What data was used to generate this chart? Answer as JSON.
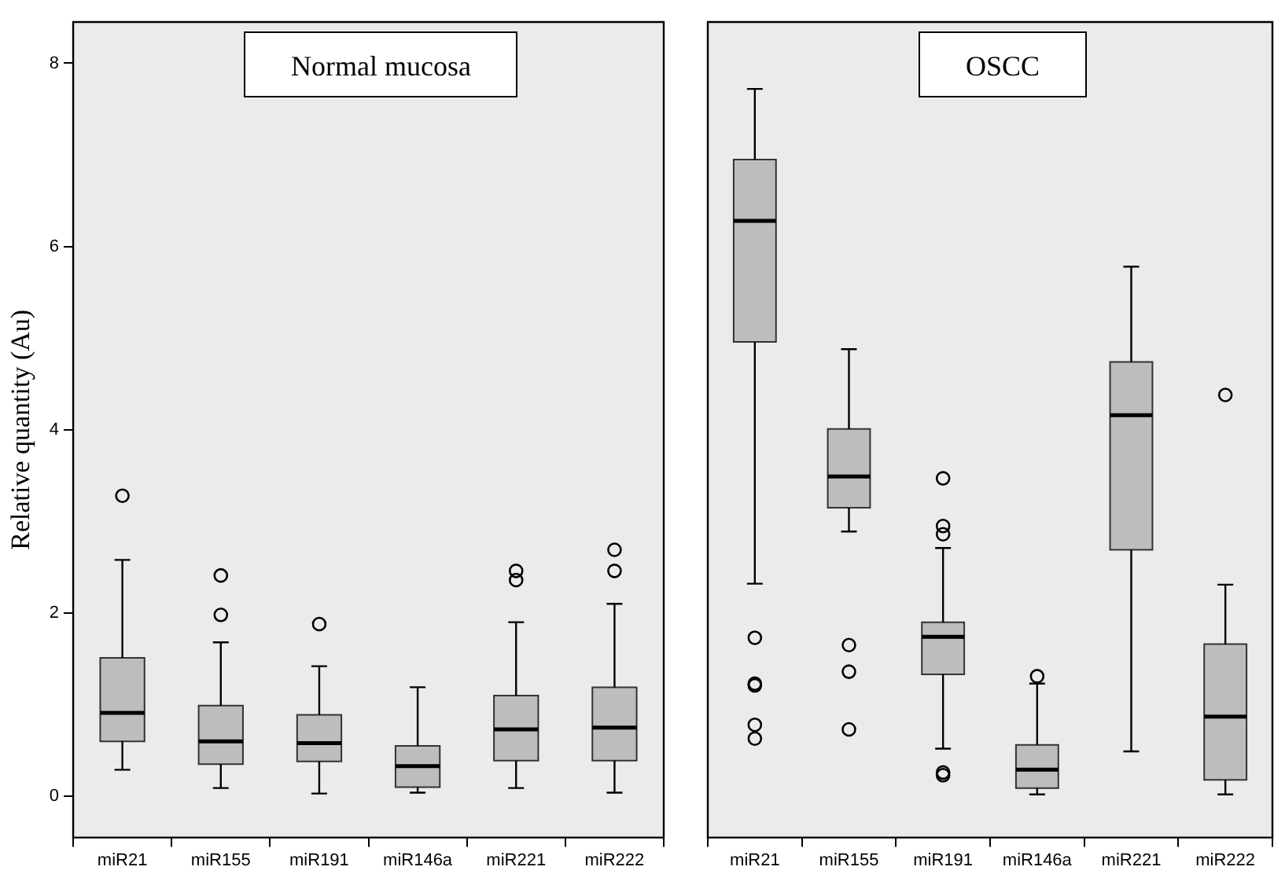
{
  "chart_data": [
    {
      "type": "box",
      "title": "Normal mucosa",
      "ylabel": "Relative quantity (Au)",
      "categories": [
        "miR21",
        "miR155",
        "miR191",
        "miR146a",
        "miR221",
        "miR222"
      ],
      "color": "#bdbdbd",
      "ylim": [
        -0.45,
        8.45
      ],
      "yticks": [
        0,
        2,
        4,
        6,
        8
      ],
      "grid": false,
      "legend": false,
      "boxes": [
        {
          "low": 0.29,
          "q1": 0.6,
          "median": 0.91,
          "q3": 1.51,
          "high": 2.58,
          "outliers": [
            3.28
          ]
        },
        {
          "low": 0.09,
          "q1": 0.35,
          "median": 0.6,
          "q3": 0.99,
          "high": 1.68,
          "outliers": [
            2.41,
            1.98
          ]
        },
        {
          "low": 0.03,
          "q1": 0.38,
          "median": 0.58,
          "q3": 0.89,
          "high": 1.42,
          "outliers": [
            1.88
          ]
        },
        {
          "low": 0.04,
          "q1": 0.1,
          "median": 0.33,
          "q3": 0.55,
          "high": 1.19
        },
        {
          "low": 0.09,
          "q1": 0.39,
          "median": 0.73,
          "q3": 1.1,
          "high": 1.9,
          "outliers": [
            2.46,
            2.36
          ]
        },
        {
          "low": 0.04,
          "q1": 0.39,
          "median": 0.75,
          "q3": 1.19,
          "high": 2.1,
          "outliers": [
            2.69,
            2.46
          ]
        }
      ]
    },
    {
      "type": "box",
      "title": "OSCC",
      "categories": [
        "miR21",
        "miR155",
        "miR191",
        "miR146a",
        "miR221",
        "miR222"
      ],
      "color": "#bdbdbd",
      "ylim": [
        -0.45,
        8.45
      ],
      "yticks": [
        0,
        2,
        4,
        6,
        8
      ],
      "tick_labels": "x",
      "grid": false,
      "legend": false,
      "boxes": [
        {
          "low": 2.32,
          "q1": 4.96,
          "median": 6.28,
          "q3": 6.95,
          "high": 7.72,
          "outliers": [
            1.73,
            1.23,
            1.21,
            0.78,
            0.63
          ]
        },
        {
          "low": 2.89,
          "q1": 3.15,
          "median": 3.49,
          "q3": 4.01,
          "high": 4.88,
          "outliers": [
            1.65,
            1.36,
            0.73
          ]
        },
        {
          "low": 0.52,
          "q1": 1.33,
          "median": 1.74,
          "q3": 1.9,
          "high": 2.71,
          "outliers": [
            3.47,
            2.95,
            2.86,
            0.26,
            0.23
          ]
        },
        {
          "low": 0.02,
          "q1": 0.09,
          "median": 0.29,
          "q3": 0.56,
          "high": 1.23,
          "outliers": [
            1.31
          ]
        },
        {
          "low": 0.49,
          "q1": 2.69,
          "median": 4.16,
          "q3": 4.74,
          "high": 5.78
        },
        {
          "low": 0.02,
          "q1": 0.18,
          "median": 0.87,
          "q3": 1.66,
          "high": 2.31,
          "outliers": [
            4.38
          ]
        }
      ]
    }
  ]
}
